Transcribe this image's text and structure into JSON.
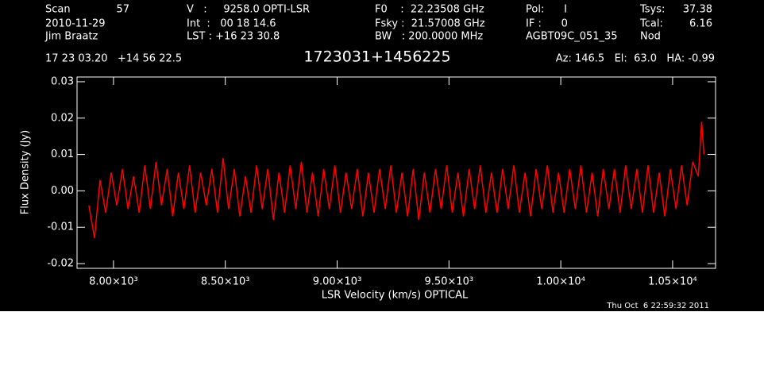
{
  "chart_data": {
    "type": "line",
    "title": "1723031+1456225",
    "header": [
      "Scan",
      "57",
      "2010-11-29",
      "Jim Braatz",
      "V   :     9258.0 OPTI-LSR",
      "Int  :   00 18 14.6",
      "LST : +16 23 30.8",
      "F0    :  22.23508 GHz",
      "Fsky :  21.57008 GHz",
      "BW   : 200.0000 MHz",
      "Pol:      I",
      "IF :      0",
      "AGBT09C_051_35",
      "Tsys:",
      "37.38",
      "Tcal:",
      "6.16",
      "Nod",
      "17 23 03.20   +14 56 22.5",
      "Az: 146.5   El:  63.0   HA: -0.99"
    ],
    "footer": "Thu Oct  6 22:59:32 2011",
    "xlabel": "LSR Velocity (km/s) OPTICAL",
    "ylabel": "Flux Density (Jy)",
    "color": "#ff0000",
    "xlim": [
      7837,
      10692
    ],
    "ylim": [
      -0.0213,
      0.0313
    ],
    "xticks": [
      {
        "value": 8000,
        "label": "8.00×10³"
      },
      {
        "value": 8500,
        "label": "8.50×10³"
      },
      {
        "value": 9000,
        "label": "9.00×10³"
      },
      {
        "value": 9500,
        "label": "9.50×10³"
      },
      {
        "value": 10000,
        "label": "1.00×10⁴"
      },
      {
        "value": 10500,
        "label": "1.05×10⁴"
      }
    ],
    "yticks": [
      -0.02,
      -0.01,
      {
        "value": 0,
        "label": "0.00"
      },
      0.01,
      0.02,
      0.03
    ],
    "x": [
      7890,
      7915,
      7940,
      7965,
      7990,
      8015,
      8040,
      8065,
      8090,
      8115,
      8140,
      8165,
      8190,
      8215,
      8240,
      8265,
      8290,
      8315,
      8340,
      8365,
      8390,
      8415,
      8440,
      8465,
      8490,
      8515,
      8540,
      8565,
      8590,
      8615,
      8640,
      8665,
      8690,
      8715,
      8740,
      8765,
      8790,
      8815,
      8840,
      8865,
      8890,
      8915,
      8940,
      8965,
      8990,
      9015,
      9040,
      9065,
      9090,
      9115,
      9140,
      9165,
      9190,
      9215,
      9240,
      9265,
      9290,
      9315,
      9340,
      9365,
      9390,
      9415,
      9440,
      9465,
      9490,
      9515,
      9540,
      9565,
      9590,
      9615,
      9640,
      9665,
      9690,
      9715,
      9740,
      9765,
      9790,
      9815,
      9840,
      9865,
      9890,
      9915,
      9940,
      9965,
      9990,
      10015,
      10040,
      10065,
      10090,
      10115,
      10140,
      10165,
      10190,
      10215,
      10240,
      10265,
      10290,
      10315,
      10340,
      10365,
      10390,
      10415,
      10440,
      10465,
      10490,
      10515,
      10540,
      10565,
      10590,
      10615,
      10630,
      10640
    ],
    "values": [
      -0.004,
      -0.013,
      0.003,
      -0.006,
      0.005,
      -0.004,
      0.006,
      -0.005,
      0.004,
      -0.006,
      0.007,
      -0.005,
      0.008,
      -0.004,
      0.006,
      -0.007,
      0.005,
      -0.005,
      0.007,
      -0.006,
      0.005,
      -0.004,
      0.006,
      -0.006,
      0.009,
      -0.005,
      0.006,
      -0.007,
      0.004,
      -0.006,
      0.007,
      -0.005,
      0.006,
      -0.008,
      0.005,
      -0.006,
      0.007,
      -0.005,
      0.008,
      -0.006,
      0.005,
      -0.007,
      0.006,
      -0.005,
      0.007,
      -0.006,
      0.005,
      -0.005,
      0.006,
      -0.007,
      0.005,
      -0.006,
      0.006,
      -0.005,
      0.007,
      -0.006,
      0.005,
      -0.007,
      0.006,
      -0.008,
      0.005,
      -0.006,
      0.006,
      -0.005,
      0.007,
      -0.006,
      0.005,
      -0.007,
      0.006,
      -0.005,
      0.007,
      -0.006,
      0.005,
      -0.006,
      0.006,
      -0.005,
      0.007,
      -0.006,
      0.005,
      -0.007,
      0.006,
      -0.005,
      0.007,
      -0.006,
      0.005,
      -0.006,
      0.006,
      -0.005,
      0.007,
      -0.006,
      0.005,
      -0.007,
      0.006,
      -0.005,
      0.006,
      -0.006,
      0.007,
      -0.005,
      0.006,
      -0.006,
      0.007,
      -0.006,
      0.005,
      -0.007,
      0.006,
      -0.005,
      0.007,
      -0.004,
      0.008,
      0.004,
      0.019,
      0.01
    ]
  }
}
